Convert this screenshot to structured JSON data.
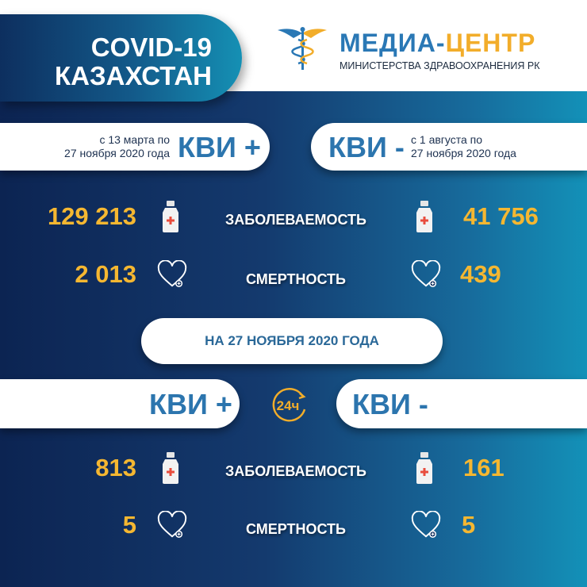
{
  "header": {
    "title_line1": "COVID-19",
    "title_line2": "КАЗАХСТАН",
    "logo_title_part1": "МЕДИА-",
    "logo_title_part2": "ЦЕНТР",
    "logo_subtitle": "МИНИСТЕРСТВА ЗДРАВООХРАНЕНИЯ РК"
  },
  "cumulative": {
    "left": {
      "period_line1": "с 13 марта по",
      "period_line2": "27 ноября 2020 года",
      "label": "КВИ +",
      "cases": "129 213",
      "deaths": "2 013"
    },
    "right": {
      "period_line1": "с 1 августа  по",
      "period_line2": "27 ноября 2020 года",
      "label": "КВИ -",
      "cases": "41 756",
      "deaths": "439"
    }
  },
  "labels": {
    "cases": "ЗАБОЛЕВАЕМОСТЬ",
    "deaths": "СМЕРТНОСТЬ"
  },
  "daily": {
    "date": "НА 27 НОЯБРЯ  2020 ГОДА",
    "badge": "24ч",
    "left": {
      "label": "КВИ +",
      "cases": "813",
      "deaths": "5"
    },
    "right": {
      "label": "КВИ -",
      "cases": "161",
      "deaths": "5"
    }
  },
  "colors": {
    "number": "#f5b731",
    "accent_blue": "#2c75ae",
    "accent_orange": "#f2ad2a",
    "background_dark": "#0c2452",
    "background_teal": "#1391b8"
  }
}
